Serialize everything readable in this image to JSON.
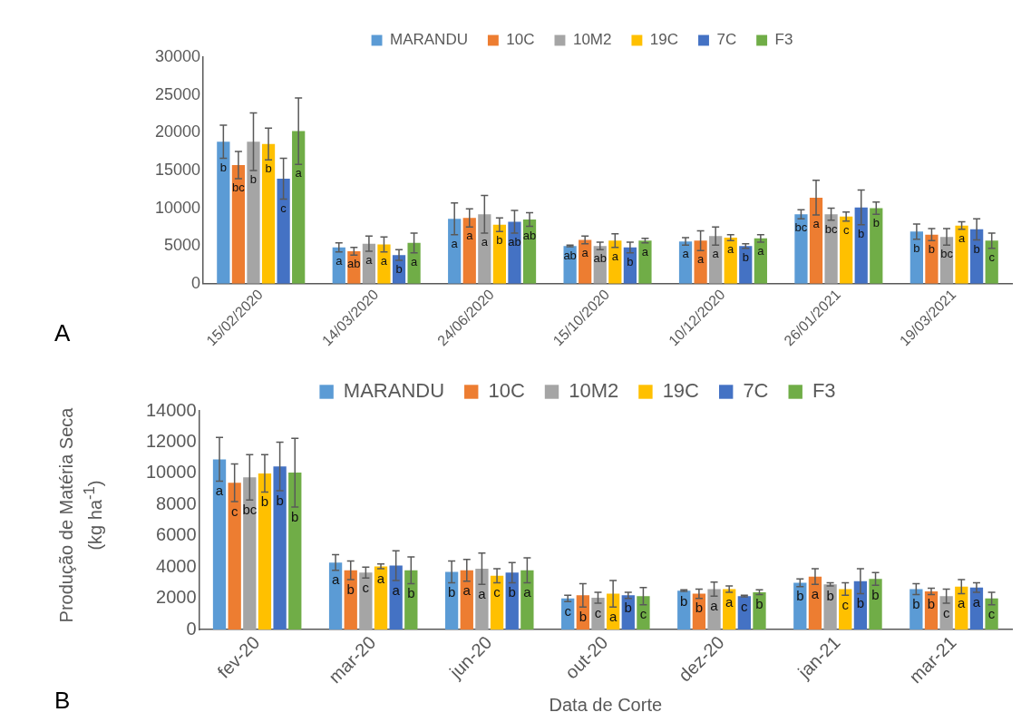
{
  "chart_data": [
    {
      "type": "bar",
      "categories": [
        "15/02/2020",
        "14/03/2020",
        "24/06/2020",
        "15/10/2020",
        "10/12/2020",
        "26/01/2021",
        "19/03/2021"
      ],
      "series": [
        {
          "name": "MARANDU",
          "color": "#5b9bd5",
          "values": [
            18800,
            4800,
            8600,
            5000,
            5600,
            9200,
            6900
          ],
          "errors": [
            2200,
            600,
            2100,
            100,
            500,
            600,
            1000
          ],
          "value_labels": [
            "b",
            "a",
            "a",
            "ab",
            "a",
            "bc",
            "b"
          ]
        },
        {
          "name": "10C",
          "color": "#ed7d31",
          "values": [
            15700,
            4300,
            8700,
            5800,
            5700,
            11400,
            6500
          ],
          "errors": [
            1800,
            500,
            1200,
            500,
            1300,
            2300,
            800
          ],
          "value_labels": [
            "bc",
            "ab",
            "a",
            "a",
            "a",
            "a",
            "b"
          ]
        },
        {
          "name": "10M2",
          "color": "#a5a5a5",
          "values": [
            18800,
            5300,
            9200,
            5000,
            6300,
            9200,
            6200
          ],
          "errors": [
            3800,
            1000,
            2500,
            500,
            1200,
            800,
            1100
          ],
          "value_labels": [
            "b",
            "a",
            "a",
            "ab",
            "a",
            "bc",
            "bc"
          ]
        },
        {
          "name": "19C",
          "color": "#ffc000",
          "values": [
            18500,
            5200,
            7800,
            5700,
            6100,
            8900,
            7700
          ],
          "errors": [
            2100,
            1000,
            900,
            900,
            400,
            600,
            500
          ],
          "value_labels": [
            "b",
            "a",
            "b",
            "a",
            "a",
            "c",
            "a"
          ]
        },
        {
          "name": "7C",
          "color": "#4472c4",
          "values": [
            13900,
            3800,
            8200,
            4800,
            5000,
            10100,
            7200
          ],
          "errors": [
            2700,
            700,
            1500,
            700,
            300,
            2300,
            1400
          ],
          "value_labels": [
            "c",
            "b",
            "ab",
            "b",
            "b",
            "b",
            "b"
          ]
        },
        {
          "name": "F3",
          "color": "#70ad47",
          "values": [
            20200,
            5400,
            8500,
            5700,
            6000,
            10000,
            5700
          ],
          "errors": [
            4400,
            1300,
            900,
            300,
            500,
            800,
            1000
          ],
          "value_labels": [
            "a",
            "a",
            "ab",
            "a",
            "a",
            "b",
            "c"
          ]
        }
      ],
      "ylim": [
        0,
        30000
      ],
      "yticks": [
        0,
        5000,
        10000,
        15000,
        20000,
        25000,
        30000
      ],
      "grid": false,
      "legend": "top",
      "annotations": [
        "A"
      ]
    },
    {
      "type": "bar",
      "categories": [
        "fev-20",
        "mar-20",
        "jun-20",
        "out-20",
        "dez-20",
        "jan-21",
        "mar-21"
      ],
      "series": [
        {
          "name": "MARANDU",
          "color": "#5b9bd5",
          "values": [
            10900,
            4300,
            3700,
            2000,
            2500,
            3000,
            2600
          ],
          "errors": [
            1400,
            500,
            700,
            200,
            50,
            250,
            350
          ],
          "value_labels": [
            "a",
            "a",
            "b",
            "c",
            "b",
            "b",
            "b"
          ]
        },
        {
          "name": "10C",
          "color": "#ed7d31",
          "values": [
            9400,
            3800,
            3800,
            2200,
            2300,
            3400,
            2450
          ],
          "errors": [
            1200,
            600,
            700,
            750,
            300,
            500,
            200
          ],
          "value_labels": [
            "c",
            "b",
            "a",
            "b",
            "b",
            "a",
            "b"
          ]
        },
        {
          "name": "10M2",
          "color": "#a5a5a5",
          "values": [
            9750,
            3650,
            3900,
            2050,
            2600,
            2900,
            2150
          ],
          "errors": [
            1450,
            350,
            1000,
            350,
            450,
            100,
            450
          ],
          "value_labels": [
            "bc",
            "c",
            "a",
            "c",
            "a",
            "b",
            "c"
          ]
        },
        {
          "name": "19C",
          "color": "#ffc000",
          "values": [
            10000,
            4050,
            3450,
            2300,
            2600,
            2600,
            2750
          ],
          "errors": [
            1200,
            150,
            450,
            850,
            200,
            400,
            450
          ],
          "value_labels": [
            "b",
            "a",
            "c",
            "a",
            "a",
            "c",
            "a"
          ]
        },
        {
          "name": "7C",
          "color": "#4472c4",
          "values": [
            10450,
            4100,
            3650,
            2200,
            2150,
            3100,
            2700
          ],
          "errors": [
            1550,
            950,
            650,
            200,
            50,
            800,
            300
          ],
          "value_labels": [
            "b",
            "a",
            "b",
            "b",
            "c",
            "b",
            "a"
          ]
        },
        {
          "name": "F3",
          "color": "#70ad47",
          "values": [
            10050,
            3800,
            3800,
            2150,
            2400,
            3250,
            2000
          ],
          "errors": [
            2200,
            850,
            800,
            550,
            150,
            400,
            400
          ],
          "value_labels": [
            "b",
            "b",
            "a",
            "c",
            "b",
            "b",
            "c"
          ]
        }
      ],
      "ylim": [
        0,
        14000
      ],
      "yticks": [
        0,
        2000,
        4000,
        6000,
        8000,
        10000,
        12000,
        14000
      ],
      "grid": false,
      "legend": "top",
      "xlabel": "Data de Corte",
      "ylabel": "Produção de Matéria Seca  (kg ha$^{-1}$)",
      "annotations": [
        "B"
      ]
    }
  ]
}
